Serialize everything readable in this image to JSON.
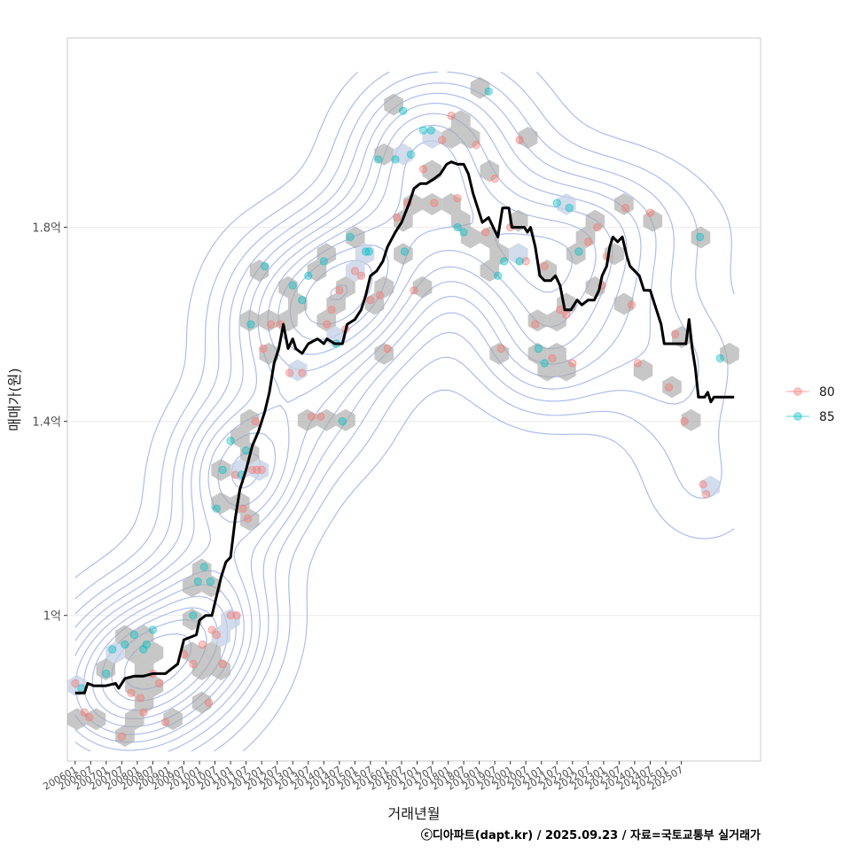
{
  "chart_data": {
    "type": "line",
    "title": "",
    "xlabel": "거래년월",
    "ylabel": "매매가(원)",
    "caption": "ⓒ디아파트(dapt.kr) / 2025.09.23 / 자료=국토교통부 실거래가",
    "x_ticks": [
      "200601",
      "200607",
      "200701",
      "200707",
      "200801",
      "200807",
      "200901",
      "200907",
      "201001",
      "201007",
      "201101",
      "201107",
      "201201",
      "201207",
      "201301",
      "201307",
      "201401",
      "201407",
      "201501",
      "201507",
      "201601",
      "201607",
      "201701",
      "201707",
      "201801",
      "201807",
      "201901",
      "201907",
      "202001",
      "202007",
      "202101",
      "202107",
      "202201",
      "202207",
      "202301",
      "202307",
      "202401",
      "202407",
      "202501",
      "202507"
    ],
    "y_ticks": [
      {
        "value": 1.0,
        "label": "1억"
      },
      {
        "value": 1.4,
        "label": "1.4억"
      },
      {
        "value": 1.8,
        "label": "1.8억"
      }
    ],
    "xlim": [
      2005.75,
      2028.05
    ],
    "ylim": [
      0.7,
      2.19
    ],
    "grid": true,
    "legend": {
      "position": "right",
      "entries": [
        {
          "name": "80",
          "color": "#F8766D"
        },
        {
          "name": "85",
          "color": "#00BFC4"
        }
      ]
    },
    "colors": {
      "line": "#000000",
      "hex": "#a9a9a9",
      "contour": "#9fb2e8",
      "series_80": "#F8766D",
      "series_85": "#00BFC4"
    },
    "series": [
      {
        "name": "trend",
        "points": [
          [
            2006.0,
            0.84
          ],
          [
            2006.3,
            0.84
          ],
          [
            2006.4,
            0.86
          ],
          [
            2006.6,
            0.855
          ],
          [
            2007.0,
            0.855
          ],
          [
            2007.3,
            0.86
          ],
          [
            2007.4,
            0.85
          ],
          [
            2007.6,
            0.87
          ],
          [
            2007.9,
            0.875
          ],
          [
            2008.2,
            0.875
          ],
          [
            2008.5,
            0.88
          ],
          [
            2008.9,
            0.88
          ],
          [
            2009.1,
            0.89
          ],
          [
            2009.3,
            0.9
          ],
          [
            2009.5,
            0.95
          ],
          [
            2009.9,
            0.96
          ],
          [
            2010.0,
            0.99
          ],
          [
            2010.2,
            1.0
          ],
          [
            2010.4,
            1.0
          ],
          [
            2010.55,
            1.04
          ],
          [
            2010.7,
            1.08
          ],
          [
            2010.85,
            1.11
          ],
          [
            2011.0,
            1.12
          ],
          [
            2011.15,
            1.2
          ],
          [
            2011.3,
            1.26
          ],
          [
            2011.5,
            1.3
          ],
          [
            2011.7,
            1.35
          ],
          [
            2011.9,
            1.38
          ],
          [
            2012.1,
            1.42
          ],
          [
            2012.25,
            1.46
          ],
          [
            2012.4,
            1.52
          ],
          [
            2012.55,
            1.55
          ],
          [
            2012.7,
            1.6
          ],
          [
            2012.85,
            1.55
          ],
          [
            2013.0,
            1.57
          ],
          [
            2013.1,
            1.55
          ],
          [
            2013.3,
            1.54
          ],
          [
            2013.5,
            1.56
          ],
          [
            2013.8,
            1.57
          ],
          [
            2014.0,
            1.56
          ],
          [
            2014.1,
            1.57
          ],
          [
            2014.35,
            1.56
          ],
          [
            2014.6,
            1.56
          ],
          [
            2014.75,
            1.6
          ],
          [
            2015.0,
            1.61
          ],
          [
            2015.2,
            1.63
          ],
          [
            2015.35,
            1.66
          ],
          [
            2015.5,
            1.7
          ],
          [
            2015.7,
            1.71
          ],
          [
            2015.9,
            1.73
          ],
          [
            2016.05,
            1.76
          ],
          [
            2016.3,
            1.79
          ],
          [
            2016.5,
            1.81
          ],
          [
            2016.75,
            1.85
          ],
          [
            2016.9,
            1.88
          ],
          [
            2017.1,
            1.89
          ],
          [
            2017.3,
            1.89
          ],
          [
            2017.55,
            1.9
          ],
          [
            2017.75,
            1.91
          ],
          [
            2017.95,
            1.93
          ],
          [
            2018.1,
            1.935
          ],
          [
            2018.3,
            1.93
          ],
          [
            2018.5,
            1.93
          ],
          [
            2018.65,
            1.91
          ],
          [
            2018.8,
            1.87
          ],
          [
            2018.95,
            1.84
          ],
          [
            2019.1,
            1.81
          ],
          [
            2019.3,
            1.82
          ],
          [
            2019.45,
            1.8
          ],
          [
            2019.6,
            1.78
          ],
          [
            2019.75,
            1.84
          ],
          [
            2019.95,
            1.84
          ],
          [
            2020.05,
            1.8
          ],
          [
            2020.2,
            1.8
          ],
          [
            2020.45,
            1.8
          ],
          [
            2020.55,
            1.79
          ],
          [
            2020.65,
            1.8
          ],
          [
            2020.8,
            1.76
          ],
          [
            2020.95,
            1.7
          ],
          [
            2021.1,
            1.69
          ],
          [
            2021.3,
            1.69
          ],
          [
            2021.45,
            1.7
          ],
          [
            2021.6,
            1.68
          ],
          [
            2021.75,
            1.63
          ],
          [
            2021.95,
            1.63
          ],
          [
            2022.15,
            1.65
          ],
          [
            2022.3,
            1.64
          ],
          [
            2022.5,
            1.65
          ],
          [
            2022.7,
            1.65
          ],
          [
            2022.85,
            1.67
          ],
          [
            2022.95,
            1.7
          ],
          [
            2023.1,
            1.72
          ],
          [
            2023.2,
            1.76
          ],
          [
            2023.3,
            1.78
          ],
          [
            2023.45,
            1.77
          ],
          [
            2023.6,
            1.78
          ],
          [
            2023.75,
            1.74
          ],
          [
            2023.85,
            1.72
          ],
          [
            2024.0,
            1.71
          ],
          [
            2024.15,
            1.7
          ],
          [
            2024.3,
            1.67
          ],
          [
            2024.5,
            1.67
          ],
          [
            2024.7,
            1.63
          ],
          [
            2024.85,
            1.6
          ],
          [
            2024.95,
            1.56
          ],
          [
            2025.1,
            1.56
          ],
          [
            2025.5,
            1.56
          ],
          [
            2025.65,
            1.56
          ],
          [
            2025.75,
            1.61
          ],
          [
            2025.85,
            1.55
          ],
          [
            2025.95,
            1.51
          ],
          [
            2026.05,
            1.45
          ],
          [
            2026.25,
            1.45
          ],
          [
            2026.35,
            1.46
          ],
          [
            2026.45,
            1.44
          ],
          [
            2026.55,
            1.45
          ],
          [
            2027.2,
            1.45
          ]
        ]
      },
      {
        "name": "80",
        "points": [
          [
            2006.0,
            0.86
          ],
          [
            2006.3,
            0.8
          ],
          [
            2006.45,
            0.79
          ],
          [
            2007.5,
            0.75
          ],
          [
            2007.8,
            0.84
          ],
          [
            2008.1,
            0.83
          ],
          [
            2008.2,
            0.8
          ],
          [
            2008.5,
            0.88
          ],
          [
            2008.7,
            0.86
          ],
          [
            2008.9,
            0.78
          ],
          [
            2009.5,
            0.92
          ],
          [
            2009.8,
            0.9
          ],
          [
            2010.1,
            0.94
          ],
          [
            2010.3,
            0.82
          ],
          [
            2010.4,
            0.97
          ],
          [
            2010.55,
            0.96
          ],
          [
            2010.75,
            0.9
          ],
          [
            2011.0,
            1.0
          ],
          [
            2011.2,
            1.0
          ],
          [
            2011.15,
            1.29
          ],
          [
            2011.4,
            1.22
          ],
          [
            2011.55,
            1.2
          ],
          [
            2011.7,
            1.3
          ],
          [
            2011.8,
            1.4
          ],
          [
            2011.85,
            1.3
          ],
          [
            2012.0,
            1.3
          ],
          [
            2012.05,
            1.55
          ],
          [
            2012.3,
            1.6
          ],
          [
            2012.6,
            1.6
          ],
          [
            2012.9,
            1.5
          ],
          [
            2013.3,
            1.5
          ],
          [
            2013.6,
            1.41
          ],
          [
            2013.9,
            1.41
          ],
          [
            2014.1,
            1.6
          ],
          [
            2014.25,
            1.63
          ],
          [
            2014.5,
            1.67
          ],
          [
            2014.7,
            1.59
          ],
          [
            2015.0,
            1.71
          ],
          [
            2015.2,
            1.7
          ],
          [
            2015.5,
            1.65
          ],
          [
            2015.8,
            1.66
          ],
          [
            2016.05,
            1.55
          ],
          [
            2016.35,
            1.82
          ],
          [
            2016.7,
            1.85
          ],
          [
            2016.9,
            1.67
          ],
          [
            2017.2,
            1.92
          ],
          [
            2017.55,
            1.85
          ],
          [
            2017.8,
            1.98
          ],
          [
            2018.1,
            2.03
          ],
          [
            2018.3,
            1.86
          ],
          [
            2018.9,
            1.97
          ],
          [
            2019.2,
            1.79
          ],
          [
            2019.5,
            1.9
          ],
          [
            2019.7,
            1.55
          ],
          [
            2020.0,
            1.8
          ],
          [
            2020.3,
            1.98
          ],
          [
            2020.5,
            1.73
          ],
          [
            2020.8,
            1.6
          ],
          [
            2021.1,
            1.72
          ],
          [
            2021.35,
            1.53
          ],
          [
            2021.6,
            1.63
          ],
          [
            2021.8,
            1.62
          ],
          [
            2022.0,
            1.52
          ],
          [
            2022.5,
            1.77
          ],
          [
            2022.8,
            1.8
          ],
          [
            2022.95,
            1.68
          ],
          [
            2023.1,
            1.74
          ],
          [
            2023.7,
            1.84
          ],
          [
            2023.9,
            1.64
          ],
          [
            2024.1,
            1.52
          ],
          [
            2024.5,
            1.83
          ],
          [
            2025.1,
            1.47
          ],
          [
            2025.3,
            1.58
          ],
          [
            2025.6,
            1.4
          ],
          [
            2026.2,
            1.27
          ],
          [
            2026.3,
            1.25
          ]
        ]
      },
      {
        "name": "85",
        "points": [
          [
            2006.2,
            0.85
          ],
          [
            2007.0,
            0.88
          ],
          [
            2007.2,
            0.93
          ],
          [
            2007.6,
            0.94
          ],
          [
            2007.9,
            0.96
          ],
          [
            2008.2,
            0.93
          ],
          [
            2008.3,
            0.94
          ],
          [
            2008.5,
            0.97
          ],
          [
            2009.8,
            1.0
          ],
          [
            2009.95,
            1.07
          ],
          [
            2010.15,
            1.1
          ],
          [
            2010.35,
            1.07
          ],
          [
            2010.55,
            1.22
          ],
          [
            2010.75,
            1.3
          ],
          [
            2011.0,
            1.36
          ],
          [
            2011.35,
            1.29
          ],
          [
            2011.5,
            1.34
          ],
          [
            2011.65,
            1.6
          ],
          [
            2012.1,
            1.72
          ],
          [
            2013.0,
            1.68
          ],
          [
            2013.3,
            1.65
          ],
          [
            2013.5,
            1.7
          ],
          [
            2014.0,
            1.73
          ],
          [
            2014.4,
            1.56
          ],
          [
            2014.6,
            1.4
          ],
          [
            2014.85,
            1.78
          ],
          [
            2015.35,
            1.75
          ],
          [
            2015.45,
            1.75
          ],
          [
            2015.75,
            1.94
          ],
          [
            2016.3,
            1.94
          ],
          [
            2016.55,
            2.04
          ],
          [
            2016.6,
            1.75
          ],
          [
            2016.8,
            1.95
          ],
          [
            2017.2,
            2.0
          ],
          [
            2017.45,
            2.0
          ],
          [
            2018.3,
            1.8
          ],
          [
            2018.5,
            1.79
          ],
          [
            2019.3,
            2.08
          ],
          [
            2019.6,
            1.7
          ],
          [
            2019.8,
            1.73
          ],
          [
            2020.3,
            1.73
          ],
          [
            2020.9,
            1.55
          ],
          [
            2021.1,
            1.52
          ],
          [
            2021.5,
            1.85
          ],
          [
            2021.9,
            1.84
          ],
          [
            2022.2,
            1.75
          ],
          [
            2026.1,
            1.78
          ],
          [
            2026.75,
            1.53
          ]
        ]
      }
    ]
  }
}
